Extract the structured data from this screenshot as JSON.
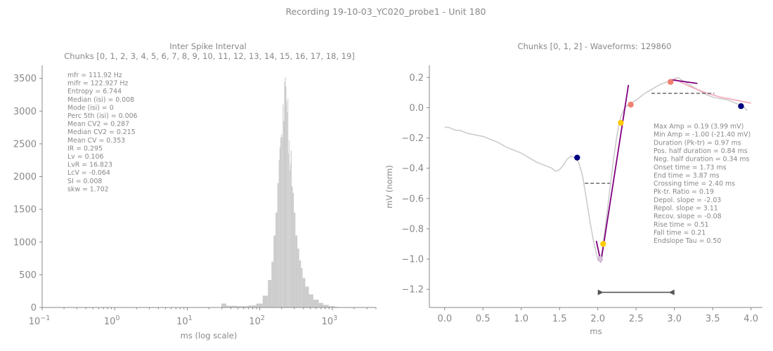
{
  "figure": {
    "suptitle": "Recording 19-10-03_YC020_probe1 - Unit 180"
  },
  "chart_data": [
    {
      "type": "bar",
      "title": "Inter Spike Interval",
      "subtitle": "Chunks [0, 1, 2, 3, 4, 5, 6, 7, 8, 9, 10, 11, 12, 13, 14, 15, 16, 17, 18, 19]",
      "xlabel": "ms (log scale)",
      "ylabel": "",
      "xscale": "log",
      "xlim": [
        0.1,
        4000
      ],
      "ylim": [
        0,
        3700
      ],
      "xticks": [
        0.1,
        1,
        10,
        100,
        1000
      ],
      "xtick_labels": [
        [
          "10",
          "−1"
        ],
        [
          "10",
          "0"
        ],
        [
          "10",
          "1"
        ],
        [
          "10",
          "2"
        ],
        [
          "10",
          "3"
        ]
      ],
      "yticks": [
        0,
        500,
        1000,
        1500,
        2000,
        2500,
        3000,
        3500
      ],
      "ytick_labels": [
        "0",
        "500",
        "1000",
        "1500",
        "2000",
        "2500",
        "3000",
        "3500"
      ],
      "bar_color": "#cccccc",
      "histogram": {
        "x": [
          30,
          40,
          60,
          80,
          100,
          120,
          140,
          150,
          160,
          170,
          180,
          185,
          190,
          195,
          200,
          205,
          210,
          215,
          220,
          225,
          230,
          235,
          240,
          245,
          250,
          255,
          260,
          265,
          270,
          280,
          290,
          300,
          320,
          340,
          360,
          380,
          400,
          450,
          500,
          600,
          700,
          800,
          1000,
          1200
        ],
        "counts": [
          60,
          25,
          20,
          30,
          60,
          180,
          420,
          700,
          1100,
          1450,
          1900,
          2250,
          2450,
          2600,
          2650,
          2600,
          3100,
          2850,
          3450,
          3520,
          3380,
          3150,
          2980,
          3200,
          2350,
          2550,
          2100,
          2200,
          2400,
          1850,
          1750,
          1450,
          1100,
          900,
          720,
          600,
          450,
          320,
          200,
          120,
          70,
          40,
          20,
          10
        ]
      },
      "stats": [
        "mfr = 111.92 Hz",
        "mifr = 122.927 Hz",
        "Entropy = 6.744",
        "Median (isi) = 0.008",
        "Mode (isi) = 0",
        "Perc 5th (isi) = 0.006",
        "Mean CV2 = 0.287",
        "Median CV2 = 0.215",
        "Mean CV = 0.353",
        "IR = 0.295",
        "Lv = 0.106",
        "LvR = 16.823",
        "LcV = -0.064",
        "SI = 0.008",
        "skw = 1.702"
      ]
    },
    {
      "type": "line",
      "title": "Chunks [0, 1, 2] - Waveforms: 129860",
      "xlabel": "ms",
      "ylabel": "mV (norm)",
      "xlim": [
        -0.2,
        4.15
      ],
      "ylim": [
        -1.32,
        0.28
      ],
      "xticks": [
        0.0,
        0.5,
        1.0,
        1.5,
        2.0,
        2.5,
        3.0,
        3.5,
        4.0
      ],
      "xtick_labels": [
        "0.0",
        "0.5",
        "1.0",
        "1.5",
        "2.0",
        "2.5",
        "3.0",
        "3.5",
        "4.0"
      ],
      "yticks": [
        0.2,
        0.0,
        -0.2,
        -0.4,
        -0.6,
        -0.8,
        -1.0,
        -1.2
      ],
      "ytick_labels": [
        "0.2",
        "0.0",
        "−0.2",
        "−0.4",
        "−0.6",
        "−0.8",
        "−1.0",
        "−1.2"
      ],
      "colors": {
        "waveform": "#cccccc",
        "slope_line": "#800080",
        "recovery_fit": "#f4a6b8",
        "dashed": "#777777",
        "onset_end": "#000080",
        "crossing": "#ffcc00",
        "peak": "#f08070",
        "trough_marker": "#d8bfd8",
        "arrow": "#555555"
      },
      "waveform": {
        "x": [
          0.0,
          0.05,
          0.1,
          0.15,
          0.2,
          0.3,
          0.4,
          0.5,
          0.6,
          0.7,
          0.8,
          0.9,
          1.0,
          1.1,
          1.2,
          1.3,
          1.4,
          1.45,
          1.5,
          1.55,
          1.6,
          1.65,
          1.7,
          1.75,
          1.8,
          1.85,
          1.9,
          1.95,
          2.0,
          2.03,
          2.06,
          2.1,
          2.15,
          2.2,
          2.25,
          2.3,
          2.35,
          2.4,
          2.5,
          2.6,
          2.7,
          2.8,
          2.9,
          3.0,
          3.05,
          3.1,
          3.2,
          3.3,
          3.4,
          3.5,
          3.6,
          3.7,
          3.8,
          3.9,
          3.95
        ],
        "y": [
          -0.13,
          -0.13,
          -0.14,
          -0.15,
          -0.15,
          -0.17,
          -0.18,
          -0.19,
          -0.21,
          -0.23,
          -0.26,
          -0.28,
          -0.3,
          -0.33,
          -0.36,
          -0.38,
          -0.4,
          -0.42,
          -0.41,
          -0.38,
          -0.34,
          -0.32,
          -0.33,
          -0.36,
          -0.45,
          -0.6,
          -0.76,
          -0.9,
          -1.0,
          -1.01,
          -0.94,
          -0.78,
          -0.57,
          -0.36,
          -0.18,
          -0.06,
          0.0,
          0.02,
          0.05,
          0.09,
          0.12,
          0.15,
          0.17,
          0.19,
          0.2,
          0.18,
          0.15,
          0.12,
          0.09,
          0.07,
          0.06,
          0.05,
          0.03,
          0.01,
          -0.02
        ]
      },
      "recovery_fit": {
        "x": [
          3.0,
          3.2,
          3.4,
          3.6,
          3.8,
          4.0
        ],
        "y": [
          0.19,
          0.14,
          0.1,
          0.07,
          0.05,
          0.03
        ]
      },
      "slope_lines": [
        {
          "x": [
            1.98,
            2.04
          ],
          "y": [
            -0.88,
            -1.02
          ]
        },
        {
          "x": [
            2.04,
            2.4
          ],
          "y": [
            -1.02,
            0.15
          ]
        },
        {
          "x": [
            2.95,
            3.3
          ],
          "y": [
            0.185,
            0.16
          ]
        }
      ],
      "dashed_lines": [
        {
          "x": [
            1.83,
            2.16
          ],
          "y": [
            -0.5,
            -0.5
          ]
        },
        {
          "x": [
            2.7,
            3.52
          ],
          "y": [
            0.095,
            0.095
          ]
        }
      ],
      "markers": [
        {
          "role": "onset",
          "x": 1.73,
          "y": -0.33,
          "color": "#000080"
        },
        {
          "role": "end",
          "x": 3.87,
          "y": 0.01,
          "color": "#000080"
        },
        {
          "role": "crossing",
          "x": 2.3,
          "y": -0.1,
          "color": "#ffcc00"
        },
        {
          "role": "crossing",
          "x": 2.07,
          "y": -0.9,
          "color": "#ffcc00"
        },
        {
          "role": "peak",
          "x": 2.43,
          "y": 0.02,
          "color": "#f08070"
        },
        {
          "role": "peak",
          "x": 2.95,
          "y": 0.17,
          "color": "#f08070"
        },
        {
          "role": "trough",
          "x": 2.03,
          "y": -1.0,
          "color": "#d8bfd8"
        }
      ],
      "duration_arrow": {
        "x": [
          2.0,
          3.0
        ],
        "y": -1.22
      },
      "stats": [
        "Max Amp = 0.19 (3.99 mV)",
        "Min Amp = -1.00 (-21.40 mV)",
        "Duration (Pk-tr) = 0.97 ms",
        "Pos. half duration = 0.84 ms",
        "Neg. half duration = 0.34 ms",
        "Onset time = 1.73 ms",
        "End time = 3.87 ms",
        "Crossing time = 2.40 ms",
        "Pk-tr. Ratio = 0.19",
        "Depol. slope = -2.03",
        "Repol. slope = 3.11",
        "Recov. slope = -0.08",
        "Rise time = 0.51",
        "Fall time = 0.21",
        "Endslope Tau = 0.50"
      ]
    }
  ]
}
